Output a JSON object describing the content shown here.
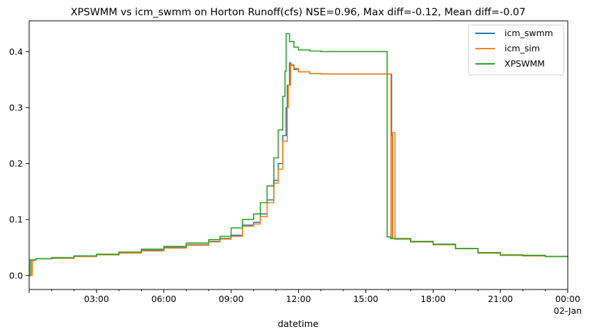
{
  "chart_data": {
    "type": "line",
    "title": "XPSWMM vs icm_swmm on Horton Runoff(cfs) NSE=0.96, Max diff=-0.12, Mean diff=-0.07",
    "xlabel": "datetime",
    "ylabel": "",
    "x_unit": "hours",
    "xlim": [
      0,
      24
    ],
    "ylim": [
      -0.025,
      0.455
    ],
    "x_ticks": [
      {
        "value": 3,
        "label": "03:00"
      },
      {
        "value": 6,
        "label": "06:00"
      },
      {
        "value": 9,
        "label": "09:00"
      },
      {
        "value": 12,
        "label": "12:00"
      },
      {
        "value": 15,
        "label": "15:00"
      },
      {
        "value": 18,
        "label": "18:00"
      },
      {
        "value": 21,
        "label": "21:00"
      },
      {
        "value": 24,
        "label": "00:00",
        "sublabel": "02-Jan"
      }
    ],
    "y_ticks": [
      0.0,
      0.1,
      0.2,
      0.3,
      0.4
    ],
    "y_tick_labels": [
      "0.0",
      "0.1",
      "0.2",
      "0.3",
      "0.4"
    ],
    "grid": false,
    "legend_position": "top-right",
    "series": [
      {
        "name": "icm_swmm",
        "color": "#1f77b4",
        "x": [
          0,
          0.1,
          0.12,
          0.25,
          0.3,
          1.0,
          2.0,
          3.0,
          4.0,
          5.0,
          6.0,
          7.0,
          8.0,
          8.5,
          9.0,
          9.5,
          10.0,
          10.3,
          10.6,
          10.9,
          11.1,
          11.3,
          11.45,
          11.5,
          11.6,
          11.65,
          11.8,
          12.0,
          12.5,
          13.0,
          14.0,
          15.0,
          16.0,
          16.15,
          16.18,
          16.3,
          17.0,
          18.0,
          19.0,
          20.0,
          21.0,
          22.0,
          23.0,
          24.0
        ],
        "y": [
          0,
          0,
          0.027,
          0.028,
          0.03,
          0.031,
          0.034,
          0.037,
          0.04,
          0.045,
          0.05,
          0.055,
          0.061,
          0.066,
          0.072,
          0.09,
          0.095,
          0.11,
          0.135,
          0.17,
          0.2,
          0.25,
          0.3,
          0.34,
          0.38,
          0.376,
          0.368,
          0.364,
          0.361,
          0.36,
          0.36,
          0.36,
          0.36,
          0.25,
          0.066,
          0.065,
          0.06,
          0.055,
          0.048,
          0.04,
          0.036,
          0.035,
          0.034,
          0.033
        ]
      },
      {
        "name": "icm_sim",
        "color": "#ff7f0e",
        "x": [
          0,
          0.08,
          0.14,
          0.25,
          0.3,
          1.0,
          2.0,
          3.0,
          4.0,
          5.0,
          6.0,
          7.0,
          8.0,
          8.5,
          9.0,
          9.5,
          10.0,
          10.3,
          10.6,
          10.9,
          11.1,
          11.3,
          11.5,
          11.55,
          11.65,
          11.7,
          11.8,
          12.0,
          12.5,
          13.0,
          14.0,
          15.0,
          16.0,
          16.08,
          16.12,
          16.2,
          16.3,
          17.0,
          18.0,
          19.0,
          20.0,
          21.0,
          22.0,
          23.0,
          24.0
        ],
        "y": [
          0,
          0,
          0.027,
          0.028,
          0.03,
          0.031,
          0.034,
          0.037,
          0.04,
          0.044,
          0.049,
          0.054,
          0.06,
          0.065,
          0.07,
          0.088,
          0.092,
          0.105,
          0.13,
          0.165,
          0.19,
          0.24,
          0.3,
          0.34,
          0.378,
          0.375,
          0.37,
          0.364,
          0.361,
          0.36,
          0.36,
          0.36,
          0.36,
          0.36,
          0.066,
          0.255,
          0.065,
          0.06,
          0.055,
          0.048,
          0.04,
          0.036,
          0.035,
          0.034,
          0.033
        ]
      },
      {
        "name": "XPSWMM",
        "color": "#2ca02c",
        "x": [
          0,
          0.05,
          0.3,
          1.0,
          2.0,
          3.0,
          4.0,
          5.0,
          6.0,
          7.0,
          8.0,
          8.5,
          9.0,
          9.5,
          10.0,
          10.3,
          10.6,
          10.9,
          11.1,
          11.3,
          11.4,
          11.45,
          11.6,
          11.8,
          12.0,
          12.5,
          13.0,
          14.0,
          15.0,
          15.9,
          15.95,
          16.1,
          17.0,
          18.0,
          19.0,
          20.0,
          21.0,
          22.0,
          23.0,
          24.0
        ],
        "y": [
          0,
          0.028,
          0.03,
          0.032,
          0.035,
          0.038,
          0.042,
          0.047,
          0.052,
          0.058,
          0.064,
          0.07,
          0.085,
          0.1,
          0.11,
          0.13,
          0.16,
          0.21,
          0.26,
          0.32,
          0.365,
          0.432,
          0.418,
          0.408,
          0.403,
          0.401,
          0.4,
          0.4,
          0.4,
          0.4,
          0.069,
          0.066,
          0.061,
          0.056,
          0.048,
          0.041,
          0.037,
          0.036,
          0.034,
          0.033
        ]
      }
    ]
  }
}
